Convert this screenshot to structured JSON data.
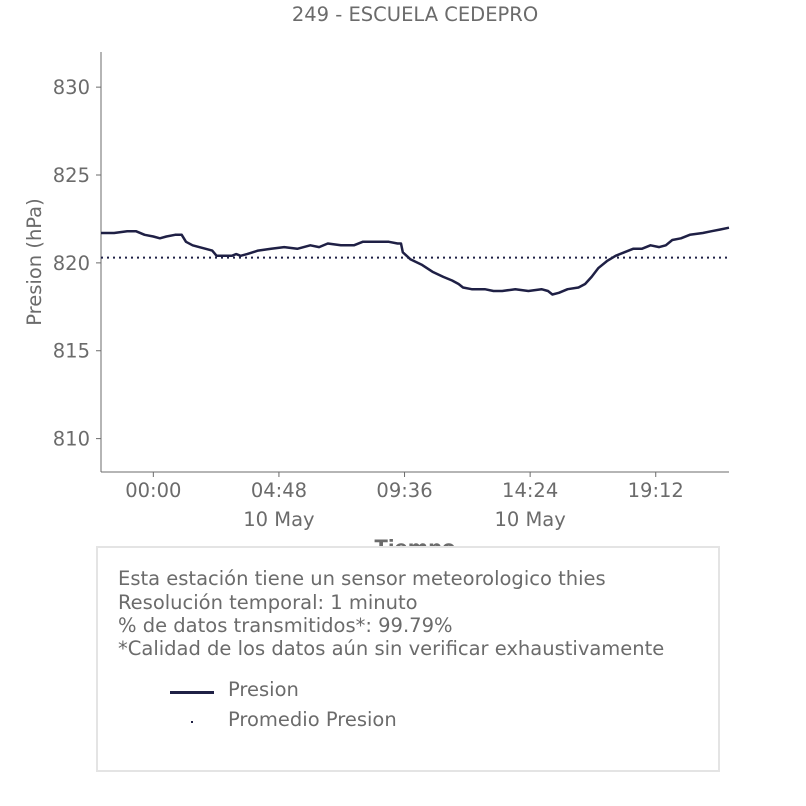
{
  "chart_data": {
    "type": "line",
    "title": "249 - ESCUELA CEDEPRO",
    "xlabel": "Tiempo",
    "ylabel": "Presion (hPa)",
    "ylim": [
      808.1,
      832.0
    ],
    "y_ticks": [
      810,
      815,
      820,
      825,
      830
    ],
    "x_ticks": [
      {
        "t": 0,
        "label": "00:00",
        "sublabel": ""
      },
      {
        "t": 288,
        "label": "04:48",
        "sublabel": "10 May"
      },
      {
        "t": 576,
        "label": "09:36",
        "sublabel": ""
      },
      {
        "t": 864,
        "label": "14:24",
        "sublabel": "10 May"
      },
      {
        "t": 1152,
        "label": "19:12",
        "sublabel": ""
      }
    ],
    "x_unit": "minutes since 00:00, 10 May",
    "xlim": [
      -120,
      1320
    ],
    "series": [
      {
        "name": "Presion",
        "color": "#1f2045",
        "style": "solid",
        "points": [
          [
            -120,
            821.7
          ],
          [
            -90,
            821.7
          ],
          [
            -60,
            821.8
          ],
          [
            -40,
            821.8
          ],
          [
            -20,
            821.6
          ],
          [
            0,
            821.5
          ],
          [
            15,
            821.4
          ],
          [
            30,
            821.5
          ],
          [
            50,
            821.6
          ],
          [
            65,
            821.6
          ],
          [
            75,
            821.2
          ],
          [
            90,
            821.0
          ],
          [
            105,
            820.9
          ],
          [
            120,
            820.8
          ],
          [
            135,
            820.7
          ],
          [
            145,
            820.4
          ],
          [
            160,
            820.4
          ],
          [
            180,
            820.4
          ],
          [
            190,
            820.5
          ],
          [
            200,
            820.4
          ],
          [
            215,
            820.5
          ],
          [
            240,
            820.7
          ],
          [
            270,
            820.8
          ],
          [
            300,
            820.9
          ],
          [
            330,
            820.8
          ],
          [
            360,
            821.0
          ],
          [
            380,
            820.9
          ],
          [
            400,
            821.1
          ],
          [
            430,
            821.0
          ],
          [
            460,
            821.0
          ],
          [
            480,
            821.2
          ],
          [
            510,
            821.2
          ],
          [
            540,
            821.2
          ],
          [
            560,
            821.1
          ],
          [
            568,
            821.1
          ],
          [
            572,
            820.6
          ],
          [
            590,
            820.2
          ],
          [
            615,
            819.9
          ],
          [
            640,
            819.5
          ],
          [
            665,
            819.2
          ],
          [
            685,
            819.0
          ],
          [
            700,
            818.8
          ],
          [
            710,
            818.6
          ],
          [
            730,
            818.5
          ],
          [
            760,
            818.5
          ],
          [
            780,
            818.4
          ],
          [
            800,
            818.4
          ],
          [
            830,
            818.5
          ],
          [
            860,
            818.4
          ],
          [
            890,
            818.5
          ],
          [
            905,
            818.4
          ],
          [
            915,
            818.2
          ],
          [
            930,
            818.3
          ],
          [
            950,
            818.5
          ],
          [
            975,
            818.6
          ],
          [
            990,
            818.8
          ],
          [
            1005,
            819.2
          ],
          [
            1020,
            819.7
          ],
          [
            1040,
            820.1
          ],
          [
            1060,
            820.4
          ],
          [
            1080,
            820.6
          ],
          [
            1100,
            820.8
          ],
          [
            1120,
            820.8
          ],
          [
            1140,
            821.0
          ],
          [
            1160,
            820.9
          ],
          [
            1175,
            821.0
          ],
          [
            1190,
            821.3
          ],
          [
            1210,
            821.4
          ],
          [
            1230,
            821.6
          ],
          [
            1260,
            821.7
          ],
          [
            1280,
            821.8
          ],
          [
            1300,
            821.9
          ],
          [
            1320,
            822.0
          ]
        ]
      },
      {
        "name": "Promedio Presion",
        "color": "#1f2045",
        "style": "dotted",
        "value": 820.3
      }
    ]
  },
  "info": {
    "lines": [
      "Esta estación tiene un sensor meteorologico thies",
      "Resolución temporal: 1 minuto",
      "% de datos transmitidos*: 99.79%",
      "*Calidad de los datos aún sin verificar exhaustivamente"
    ]
  },
  "legend": [
    {
      "label": "Presion",
      "marker": "line"
    },
    {
      "label": "Promedio Presion",
      "marker": "dot"
    }
  ]
}
